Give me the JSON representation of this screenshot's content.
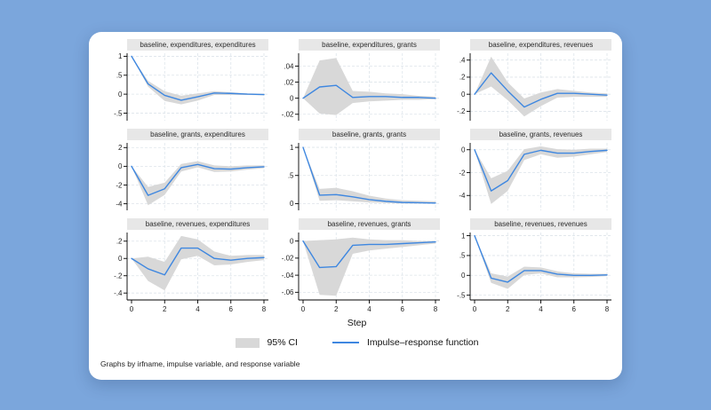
{
  "page": {
    "background": "#7ba6dc",
    "card_background": "#ffffff"
  },
  "colors": {
    "irf_line": "#3e87e0",
    "ci_fill": "#d8d8d8",
    "title_strip": "#e7e7e7",
    "grid": "#dde4ea",
    "axis": "#000000",
    "text": "#222222"
  },
  "legend": {
    "items": [
      {
        "swatch": "ci-box",
        "label": "95% CI"
      },
      {
        "swatch": "irf-line",
        "label": "Impulse–response function"
      }
    ]
  },
  "note": "Graphs by irfname, impulse variable, and response variable",
  "chart_data": {
    "type": "line",
    "layout": "3x3 small multiples, shared x axis, legend bottom center, grid dashed on",
    "xlabel": "Step",
    "x": [
      0,
      1,
      2,
      3,
      4,
      5,
      6,
      7,
      8
    ],
    "xticks": [
      0,
      2,
      4,
      6,
      8
    ],
    "series_names": [
      "95% CI",
      "Impulse–response function"
    ],
    "panels": [
      {
        "title": "baseline, expenditures, expenditures",
        "ylim": [
          -0.7,
          1.08
        ],
        "yticks": [
          {
            "label": "1",
            "v": 1
          },
          {
            "label": ".5",
            "v": 0.5
          },
          {
            "label": "0",
            "v": 0
          },
          {
            "label": "-.5",
            "v": -0.5
          }
        ],
        "irf": [
          1,
          0.27,
          -0.03,
          -0.16,
          -0.07,
          0.03,
          0.02,
          0.0,
          -0.01
        ],
        "ci_upper": [
          1,
          0.35,
          0.08,
          -0.04,
          0.02,
          0.08,
          0.05,
          0.02,
          0.01
        ],
        "ci_lower": [
          1,
          0.2,
          -0.18,
          -0.27,
          -0.17,
          -0.02,
          -0.02,
          -0.02,
          -0.03
        ]
      },
      {
        "title": "baseline, expenditures, grants",
        "ylim": [
          -0.028,
          0.056
        ],
        "yticks": [
          {
            "label": ".04",
            "v": 0.04
          },
          {
            "label": ".02",
            "v": 0.02
          },
          {
            "label": "0",
            "v": 0
          },
          {
            "label": "-.02",
            "v": -0.02
          }
        ],
        "irf": [
          0,
          0.014,
          0.016,
          0.001,
          0.002,
          0.002,
          0.001,
          0.001,
          0.0
        ],
        "ci_upper": [
          0,
          0.047,
          0.05,
          0.009,
          0.008,
          0.006,
          0.005,
          0.003,
          0.002
        ],
        "ci_lower": [
          0,
          -0.019,
          -0.021,
          -0.006,
          -0.004,
          -0.003,
          -0.002,
          -0.002,
          -0.001
        ]
      },
      {
        "title": "baseline, expenditures, revenues",
        "ylim": [
          -0.31,
          0.48
        ],
        "yticks": [
          {
            "label": ".4",
            "v": 0.4
          },
          {
            "label": ".2",
            "v": 0.2
          },
          {
            "label": "0",
            "v": 0
          },
          {
            "label": "-.2",
            "v": -0.2
          }
        ],
        "irf": [
          0,
          0.25,
          0.04,
          -0.15,
          -0.06,
          0.01,
          0.01,
          0.0,
          -0.01
        ],
        "ci_upper": [
          0,
          0.44,
          0.14,
          -0.05,
          0.02,
          0.06,
          0.04,
          0.02,
          0.01
        ],
        "ci_lower": [
          0,
          0.09,
          -0.07,
          -0.26,
          -0.14,
          -0.04,
          -0.03,
          -0.03,
          -0.03
        ]
      },
      {
        "title": "baseline, grants, expenditures",
        "ylim": [
          -4.7,
          2.5
        ],
        "yticks": [
          {
            "label": "2",
            "v": 2
          },
          {
            "label": "0",
            "v": 0
          },
          {
            "label": "-2",
            "v": -2
          },
          {
            "label": "-4",
            "v": -4
          }
        ],
        "irf": [
          0,
          -3.1,
          -2.4,
          -0.15,
          0.2,
          -0.25,
          -0.3,
          -0.15,
          -0.05
        ],
        "ci_upper": [
          0,
          -2.2,
          -1.75,
          0.25,
          0.55,
          0.1,
          0.0,
          0.1,
          0.1
        ],
        "ci_lower": [
          0,
          -4.15,
          -3.05,
          -0.55,
          -0.1,
          -0.6,
          -0.55,
          -0.35,
          -0.2
        ]
      },
      {
        "title": "baseline, grants, grants",
        "ylim": [
          -0.12,
          1.08
        ],
        "yticks": [
          {
            "label": "1",
            "v": 1
          },
          {
            "label": ".5",
            "v": 0.5
          },
          {
            "label": "0",
            "v": 0
          }
        ],
        "irf": [
          1,
          0.15,
          0.16,
          0.12,
          0.07,
          0.04,
          0.02,
          0.015,
          0.01
        ],
        "ci_upper": [
          1,
          0.26,
          0.28,
          0.22,
          0.14,
          0.09,
          0.06,
          0.05,
          0.04
        ],
        "ci_lower": [
          1,
          0.05,
          0.06,
          0.04,
          0.02,
          0.01,
          0.0,
          0.0,
          0.0
        ]
      },
      {
        "title": "baseline, grants, revenues",
        "ylim": [
          -5.3,
          0.6
        ],
        "yticks": [
          {
            "label": "0",
            "v": 0
          },
          {
            "label": "-2",
            "v": -2
          },
          {
            "label": "-4",
            "v": -4
          }
        ],
        "irf": [
          0,
          -3.6,
          -2.7,
          -0.4,
          -0.05,
          -0.3,
          -0.3,
          -0.15,
          -0.05
        ],
        "ci_upper": [
          0,
          -2.5,
          -1.85,
          0.05,
          0.3,
          0.05,
          0.0,
          0.1,
          0.1
        ],
        "ci_lower": [
          0,
          -4.75,
          -3.6,
          -0.9,
          -0.4,
          -0.7,
          -0.6,
          -0.4,
          -0.2
        ]
      },
      {
        "title": "baseline, revenues, expenditures",
        "ylim": [
          -0.48,
          0.3
        ],
        "yticks": [
          {
            "label": ".2",
            "v": 0.2
          },
          {
            "label": "0",
            "v": 0
          },
          {
            "label": "-.2",
            "v": -0.2
          },
          {
            "label": "-.4",
            "v": -0.4
          }
        ],
        "irf": [
          0,
          -0.12,
          -0.19,
          0.12,
          0.12,
          0.0,
          -0.02,
          0.0,
          0.01
        ],
        "ci_upper": [
          0,
          0.02,
          -0.04,
          0.26,
          0.22,
          0.08,
          0.03,
          0.04,
          0.04
        ],
        "ci_lower": [
          0,
          -0.26,
          -0.37,
          -0.01,
          0.03,
          -0.08,
          -0.07,
          -0.04,
          -0.02
        ]
      },
      {
        "title": "baseline, revenues, grants",
        "ylim": [
          -0.069,
          0.01
        ],
        "yticks": [
          {
            "label": "0",
            "v": 0
          },
          {
            "label": "-.02",
            "v": -0.02
          },
          {
            "label": "-.04",
            "v": -0.04
          },
          {
            "label": "-.06",
            "v": -0.06
          }
        ],
        "irf": [
          0,
          -0.031,
          -0.03,
          -0.005,
          -0.004,
          -0.004,
          -0.003,
          -0.002,
          -0.001
        ],
        "ci_upper": [
          0,
          0.001,
          0.002,
          0.004,
          0.002,
          0.001,
          0.001,
          0.0,
          0.0
        ],
        "ci_lower": [
          0,
          -0.063,
          -0.064,
          -0.015,
          -0.011,
          -0.009,
          -0.007,
          -0.005,
          -0.003
        ]
      },
      {
        "title": "baseline, revenues, revenues",
        "ylim": [
          -0.62,
          1.08
        ],
        "yticks": [
          {
            "label": "1",
            "v": 1
          },
          {
            "label": ".5",
            "v": 0.5
          },
          {
            "label": "0",
            "v": 0
          },
          {
            "label": "-.5",
            "v": -0.5
          }
        ],
        "irf": [
          1,
          -0.07,
          -0.17,
          0.12,
          0.12,
          0.03,
          0.0,
          0.0,
          0.01
        ],
        "ci_upper": [
          1,
          0.05,
          -0.03,
          0.22,
          0.2,
          0.1,
          0.05,
          0.04,
          0.04
        ],
        "ci_lower": [
          1,
          -0.19,
          -0.34,
          0.01,
          0.05,
          -0.05,
          -0.05,
          -0.04,
          -0.02
        ]
      }
    ]
  }
}
